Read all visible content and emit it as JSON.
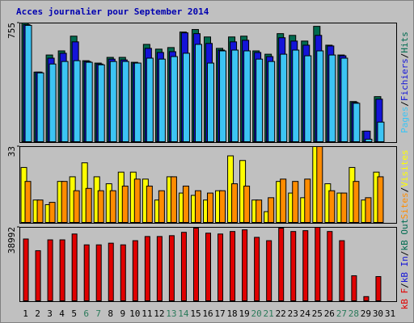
{
  "title": "Acces journalier pour September 2014",
  "chart_data": [
    {
      "type": "bar",
      "ylim": [
        0,
        755
      ],
      "yticks": [
        755
      ],
      "legend_separator": "/",
      "series": [
        {
          "name": "Hits",
          "color": "#006b50",
          "values": [
            755,
            445,
            553,
            579,
            672,
            517,
            502,
            538,
            538,
            507,
            620,
            590,
            600,
            698,
            714,
            667,
            595,
            667,
            672,
            579,
            558,
            688,
            677,
            641,
            734,
            615,
            553,
            259,
            72,
            290,
            0
          ]
        },
        {
          "name": "Fichiers",
          "color": "#1414d8",
          "values": [
            745,
            445,
            533,
            564,
            636,
            512,
            496,
            527,
            522,
            502,
            595,
            569,
            574,
            693,
            688,
            626,
            584,
            636,
            646,
            569,
            543,
            662,
            641,
            615,
            677,
            610,
            548,
            253,
            72,
            274,
            0
          ]
        },
        {
          "name": "Pages",
          "color": "#3cc4f4",
          "values": [
            740,
            440,
            496,
            512,
            517,
            507,
            491,
            512,
            512,
            502,
            533,
            527,
            543,
            564,
            620,
            502,
            579,
            584,
            579,
            527,
            512,
            558,
            584,
            548,
            579,
            553,
            533,
            248,
            21,
            129,
            0
          ]
        }
      ]
    },
    {
      "type": "bar",
      "ylim": [
        0,
        33
      ],
      "yticks": [
        33
      ],
      "legend_separator": "/",
      "series": [
        {
          "name": "Visites",
          "color": "#ffff00",
          "values": [
            24,
            10,
            8,
            18,
            20,
            26,
            20,
            17,
            22,
            22,
            19,
            10,
            20,
            13,
            12,
            10,
            14,
            29,
            27,
            10,
            5,
            18,
            13,
            11,
            33,
            17,
            13,
            24,
            10,
            22,
            0
          ]
        },
        {
          "name": "Sites",
          "color": "#ff8c00",
          "values": [
            18,
            10,
            9,
            18,
            14,
            15,
            14,
            14,
            16,
            19,
            16,
            14,
            20,
            16,
            14,
            13,
            14,
            17,
            16,
            10,
            11,
            19,
            18,
            19,
            33,
            14,
            13,
            18,
            11,
            20,
            0
          ]
        }
      ]
    },
    {
      "type": "bar",
      "ylim": [
        0,
        38992
      ],
      "yticks": [
        38992
      ],
      "legend_separator": "/",
      "categories": [
        "1",
        "2",
        "3",
        "4",
        "5",
        "6",
        "7",
        "8",
        "9",
        "10",
        "11",
        "12",
        "13",
        "14",
        "15",
        "16",
        "17",
        "18",
        "19",
        "20",
        "21",
        "22",
        "23",
        "24",
        "25",
        "26",
        "27",
        "28",
        "29",
        "30",
        "31"
      ],
      "category_colors": [
        "#000",
        "#000",
        "#000",
        "#000",
        "#000",
        "#2a7a5a",
        "#2a7a5a",
        "#000",
        "#000",
        "#000",
        "#000",
        "#000",
        "#2a7a5a",
        "#2a7a5a",
        "#000",
        "#000",
        "#000",
        "#000",
        "#000",
        "#2a7a5a",
        "#2a7a5a",
        "#000",
        "#000",
        "#000",
        "#000",
        "#000",
        "#2a7a5a",
        "#2a7a5a",
        "#000",
        "#000",
        "#000"
      ],
      "legend": [
        {
          "name": "kB F",
          "color": "#e00000"
        },
        {
          "name": "kB In",
          "color": "#1414d8"
        },
        {
          "name": "kB Out",
          "color": "#006b50"
        }
      ],
      "series": [
        {
          "name": "kB F",
          "color": "#e00000",
          "values": [
            32858,
            26725,
            32420,
            32420,
            35487,
            29792,
            29792,
            30668,
            29792,
            31982,
            34172,
            34172,
            34610,
            36363,
            38554,
            35925,
            35487,
            36801,
            37677,
            33734,
            31982,
            38554,
            36801,
            37239,
            38992,
            36801,
            31982,
            13581,
            2629,
            13143,
            0
          ]
        }
      ]
    }
  ]
}
